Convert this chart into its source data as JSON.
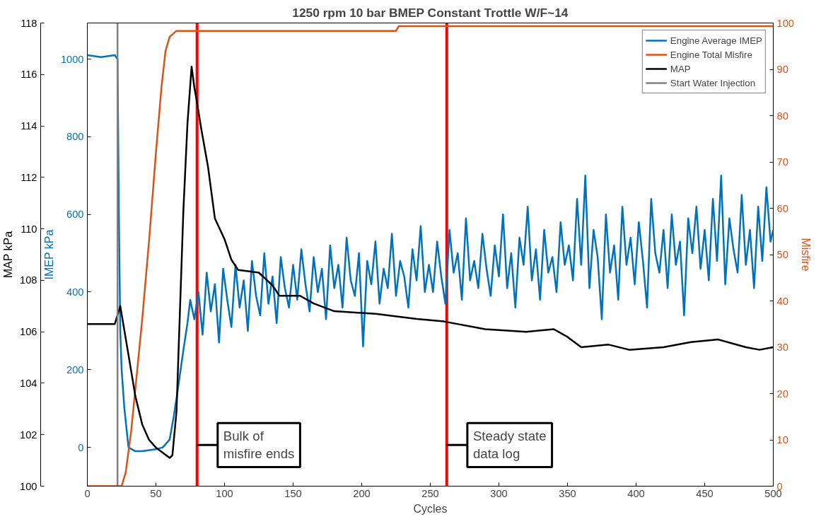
{
  "chart_data": {
    "type": "line",
    "title": "1250 rpm 10 bar BMEP Constant Trottle W/F~14",
    "xlabel": "Cycles",
    "ylabel": "MAP kPa",
    "y3label": "IMEP kPa",
    "y2label": "Misfire",
    "xlim": [
      0,
      500
    ],
    "xticks": [
      0,
      50,
      100,
      150,
      200,
      250,
      300,
      350,
      400,
      450,
      500
    ],
    "ylim": [
      100,
      118
    ],
    "yticks": [
      100,
      102,
      104,
      106,
      108,
      110,
      112,
      114,
      116,
      118
    ],
    "y3lim": [
      -100,
      1093
    ],
    "y3ticks": [
      0,
      200,
      400,
      600,
      800,
      1000
    ],
    "y2lim": [
      0,
      100
    ],
    "y2ticks": [
      0,
      10,
      20,
      30,
      40,
      50,
      60,
      70,
      80,
      90,
      100
    ],
    "grid": false,
    "legend": "top right",
    "series": [
      {
        "name": "Engine Average IMEP",
        "color": "#0072bd",
        "axis": "y3",
        "x": [
          0,
          10,
          20,
          22,
          23,
          24,
          25,
          27,
          30,
          35,
          40,
          50,
          55,
          60,
          63,
          66,
          70,
          73,
          75,
          78,
          81,
          84,
          87,
          90,
          93,
          96,
          99,
          102,
          105,
          108,
          111,
          114,
          117,
          120,
          123,
          126,
          129,
          132,
          135,
          138,
          141,
          144,
          147,
          150,
          153,
          156,
          159,
          162,
          165,
          168,
          171,
          174,
          177,
          180,
          183,
          186,
          189,
          192,
          195,
          198,
          201,
          204,
          207,
          210,
          213,
          216,
          219,
          222,
          225,
          228,
          231,
          234,
          237,
          240,
          243,
          246,
          249,
          252,
          255,
          258,
          261,
          264,
          267,
          270,
          273,
          276,
          279,
          282,
          285,
          288,
          291,
          294,
          297,
          300,
          303,
          306,
          309,
          312,
          315,
          318,
          321,
          324,
          327,
          330,
          333,
          336,
          339,
          342,
          345,
          348,
          351,
          354,
          357,
          360,
          363,
          366,
          369,
          372,
          375,
          378,
          381,
          384,
          387,
          390,
          393,
          396,
          399,
          402,
          405,
          408,
          411,
          414,
          417,
          420,
          423,
          426,
          429,
          432,
          435,
          438,
          441,
          444,
          447,
          450,
          453,
          456,
          459,
          462,
          465,
          468,
          471,
          474,
          477,
          480,
          483,
          486,
          489,
          492,
          495,
          498,
          500
        ],
        "values": [
          1010,
          1005,
          1010,
          1000,
          600,
          300,
          200,
          100,
          0,
          -10,
          -10,
          -5,
          0,
          20,
          80,
          150,
          250,
          320,
          380,
          330,
          400,
          290,
          450,
          350,
          420,
          270,
          460,
          380,
          310,
          470,
          360,
          430,
          300,
          480,
          390,
          340,
          500,
          370,
          440,
          320,
          490,
          410,
          360,
          470,
          380,
          510,
          420,
          350,
          490,
          400,
          460,
          330,
          520,
          410,
          470,
          360,
          540,
          430,
          390,
          500,
          260,
          480,
          420,
          530,
          370,
          460,
          410,
          550,
          390,
          480,
          440,
          360,
          510,
          430,
          570,
          400,
          470,
          400,
          530,
          440,
          370,
          560,
          450,
          500,
          380,
          590,
          430,
          480,
          410,
          550,
          460,
          390,
          520,
          440,
          600,
          410,
          500,
          360,
          540,
          470,
          620,
          430,
          510,
          380,
          560,
          450,
          490,
          400,
          580,
          470,
          520,
          430,
          640,
          470,
          700,
          410,
          560,
          490,
          330,
          600,
          450,
          520,
          380,
          620,
          470,
          540,
          420,
          580,
          480,
          360,
          640,
          500,
          450,
          560,
          410,
          600,
          470,
          530,
          340,
          590,
          500,
          620,
          460,
          560,
          430,
          640,
          480,
          700,
          420,
          590,
          510,
          450,
          650,
          470,
          560,
          410,
          620,
          480,
          670,
          530,
          560
        ]
      },
      {
        "name": "Engine Total Misfire",
        "color": "#d95319",
        "axis": "y2",
        "x": [
          0,
          25,
          28,
          32,
          36,
          40,
          45,
          50,
          54,
          57,
          60,
          65,
          225,
          227,
          500
        ],
        "values": [
          0,
          0,
          3,
          12,
          24,
          36,
          53,
          72,
          86,
          94,
          97,
          98.3,
          98.3,
          99.3,
          99.3
        ]
      },
      {
        "name": "MAP",
        "color": "#000000",
        "axis": "y",
        "x": [
          0,
          20,
          24,
          30,
          35,
          40,
          45,
          50,
          55,
          60,
          62,
          65,
          70,
          73,
          76,
          78,
          80,
          83,
          88,
          93,
          100,
          105,
          110,
          125,
          135,
          140,
          155,
          165,
          180,
          210,
          240,
          260,
          290,
          320,
          340,
          350,
          360,
          380,
          395,
          420,
          440,
          460,
          480,
          490,
          500
        ],
        "values": [
          106.3,
          106.3,
          107.0,
          105.1,
          103.5,
          102.4,
          101.8,
          101.5,
          101.3,
          101.1,
          101.2,
          102.9,
          110.7,
          114.1,
          116.3,
          115.5,
          114.9,
          113.9,
          112.4,
          110.4,
          109.6,
          108.8,
          108.4,
          108.3,
          107.8,
          107.4,
          107.4,
          107.1,
          106.8,
          106.7,
          106.5,
          106.4,
          106.1,
          106.0,
          106.1,
          105.8,
          105.4,
          105.5,
          105.3,
          105.4,
          105.6,
          105.7,
          105.4,
          105.3,
          105.4
        ]
      },
      {
        "name": "Start Water Injection",
        "color": "#808080",
        "axis": "y",
        "x": [
          22,
          22
        ],
        "values": [
          100,
          118
        ]
      }
    ],
    "ref_lines": [
      {
        "axis": "x",
        "value": 80,
        "color": "#ff0000"
      },
      {
        "axis": "x",
        "value": 262,
        "color": "#ff0000"
      }
    ],
    "annotations": [
      {
        "text": "Bulk of\nmisfire ends",
        "x": 80,
        "y": 101.6
      },
      {
        "text": "Steady state\ndata log",
        "x": 262,
        "y": 101.6
      }
    ]
  }
}
